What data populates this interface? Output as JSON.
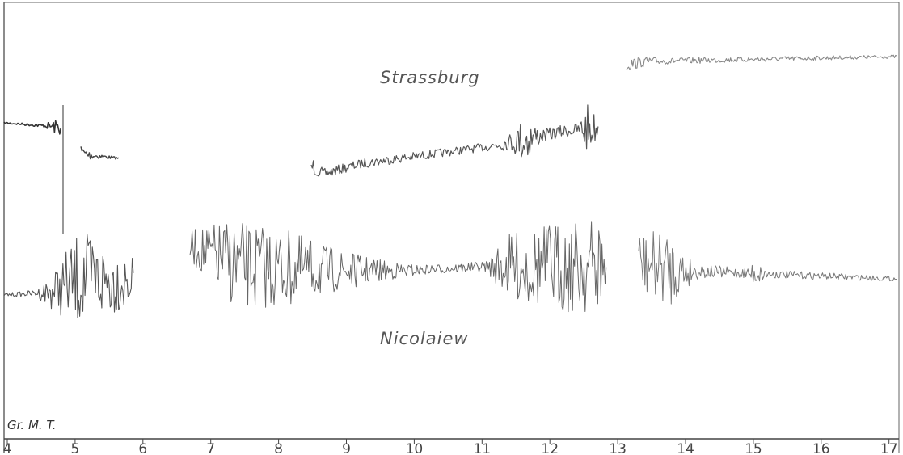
{
  "labels": {
    "upper_station": "Strassburg",
    "lower_station": "Nicolaiew",
    "time_axis": "Gr. M. T."
  },
  "time_axis_ticks": [
    4,
    5,
    6,
    7,
    8,
    9,
    10,
    11,
    12,
    13,
    14,
    15,
    16,
    17
  ]
}
